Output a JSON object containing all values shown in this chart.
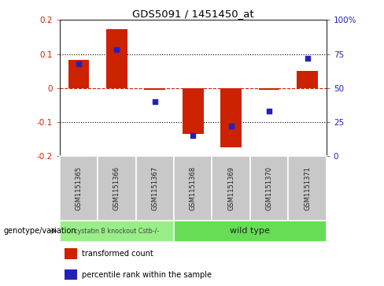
{
  "title": "GDS5091 / 1451450_at",
  "samples": [
    "GSM1151365",
    "GSM1151366",
    "GSM1151367",
    "GSM1151368",
    "GSM1151369",
    "GSM1151370",
    "GSM1151371"
  ],
  "bar_values": [
    0.083,
    0.172,
    -0.005,
    -0.135,
    -0.175,
    -0.005,
    0.05
  ],
  "percentile_values_pct": [
    68,
    78,
    40,
    15,
    22,
    33,
    72
  ],
  "ylim": [
    -0.2,
    0.2
  ],
  "ylim_right": [
    0,
    100
  ],
  "yticks_left": [
    -0.2,
    -0.1,
    0.0,
    0.1,
    0.2
  ],
  "yticks_right": [
    0,
    25,
    50,
    75,
    100
  ],
  "bar_color": "#CC2200",
  "point_color": "#2222BB",
  "zero_line_color": "#CC2200",
  "dotted_line_color": "#000000",
  "group1_label": "cystatin B knockout Cstb-/-",
  "group2_label": "wild type",
  "group1_indices": [
    0,
    1,
    2
  ],
  "group2_indices": [
    3,
    4,
    5,
    6
  ],
  "group1_color": "#99EE88",
  "group2_color": "#66DD55",
  "genotype_label": "genotype/variation",
  "legend_bar_label": "transformed count",
  "legend_point_label": "percentile rank within the sample",
  "bar_width": 0.55,
  "bg_color": "#FFFFFF"
}
